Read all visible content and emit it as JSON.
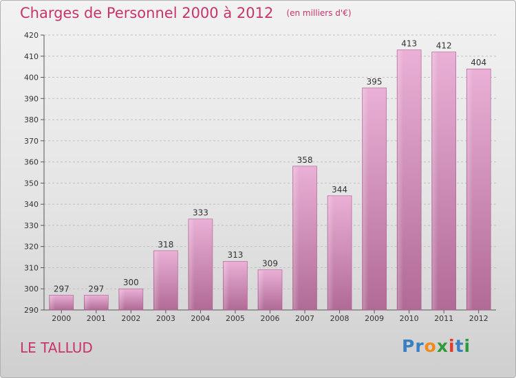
{
  "header": {
    "title": "Charges de Personnel 2000 à 2012",
    "subtitle": "(en milliers d'€)"
  },
  "footer": {
    "commune": "LE TALLUD",
    "logo_letters": [
      {
        "ch": "P",
        "color": "#3a7fc1"
      },
      {
        "ch": "r",
        "color": "#3a7fc1"
      },
      {
        "ch": "o",
        "color": "#f08a1c"
      },
      {
        "ch": "x",
        "color": "#2f9b3c"
      },
      {
        "ch": "i",
        "color": "#e23a2e"
      },
      {
        "ch": "t",
        "color": "#3a7fc1"
      },
      {
        "ch": "i",
        "color": "#2f9b3c"
      }
    ]
  },
  "colors": {
    "title": "#c8336c",
    "bar_light": "#e8a8d2",
    "bar_dark": "#b56a98",
    "grid": "#bfbfbf"
  },
  "chart_data": {
    "type": "bar",
    "title": "Charges de Personnel 2000 à 2012",
    "subtitle": "(en milliers d'€)",
    "xlabel": "",
    "ylabel": "",
    "categories": [
      "2000",
      "2001",
      "2002",
      "2003",
      "2004",
      "2005",
      "2006",
      "2007",
      "2008",
      "2009",
      "2010",
      "2011",
      "2012"
    ],
    "values": [
      297,
      297,
      300,
      318,
      333,
      313,
      309,
      358,
      344,
      395,
      413,
      412,
      404
    ],
    "ylim": [
      290,
      420
    ],
    "yticks": [
      290,
      300,
      310,
      320,
      330,
      340,
      350,
      360,
      370,
      380,
      390,
      400,
      410,
      420
    ],
    "grid": true,
    "data_labels": true
  }
}
